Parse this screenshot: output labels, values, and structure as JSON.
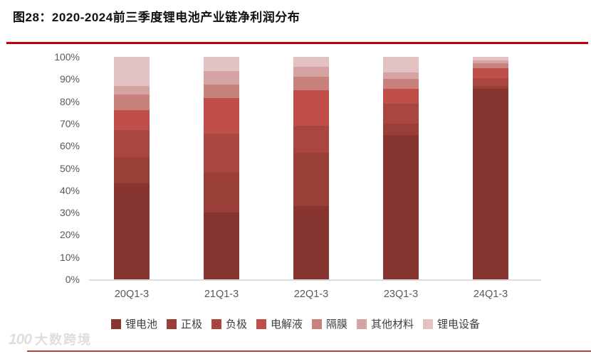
{
  "title": "图28：2020-2024前三季度锂电池产业链净利润分布",
  "accent_color": "#C00000",
  "watermark": {
    "logo": "100",
    "text": "大数跨境"
  },
  "chart_data": {
    "type": "bar",
    "stacked": true,
    "title": "图28：2020-2024前三季度锂电池产业链净利润分布",
    "xlabel": "",
    "ylabel": "",
    "ylim": [
      0,
      100
    ],
    "unit": "%",
    "grid": false,
    "legend_position": "bottom",
    "categories": [
      "20Q1-3",
      "21Q1-3",
      "22Q1-3",
      "23Q1-3",
      "24Q1-3"
    ],
    "ytick_labels": [
      "0%",
      "10%",
      "20%",
      "30%",
      "40%",
      "50%",
      "60%",
      "70%",
      "80%",
      "90%",
      "100%"
    ],
    "series": [
      {
        "name": "锂电池",
        "color": "#873530",
        "values": [
          43,
          30,
          33,
          65,
          85.5
        ]
      },
      {
        "name": "正极",
        "color": "#9A3F38",
        "values": [
          12,
          18,
          24,
          5,
          1.5
        ]
      },
      {
        "name": "负极",
        "color": "#A8463F",
        "values": [
          12,
          17.5,
          12,
          9,
          3.5
        ]
      },
      {
        "name": "电解液",
        "color": "#BF4F48",
        "values": [
          9,
          16,
          16,
          6.5,
          4.5
        ]
      },
      {
        "name": "隔膜",
        "color": "#C8827D",
        "values": [
          7,
          6,
          6,
          4.5,
          2
        ]
      },
      {
        "name": "其他材料",
        "color": "#D5A3A1",
        "values": [
          4,
          6,
          4.5,
          3,
          1.5
        ]
      },
      {
        "name": "锂电设备",
        "color": "#E2C2C3",
        "values": [
          13,
          6.5,
          4.5,
          7,
          1.5
        ]
      }
    ]
  }
}
